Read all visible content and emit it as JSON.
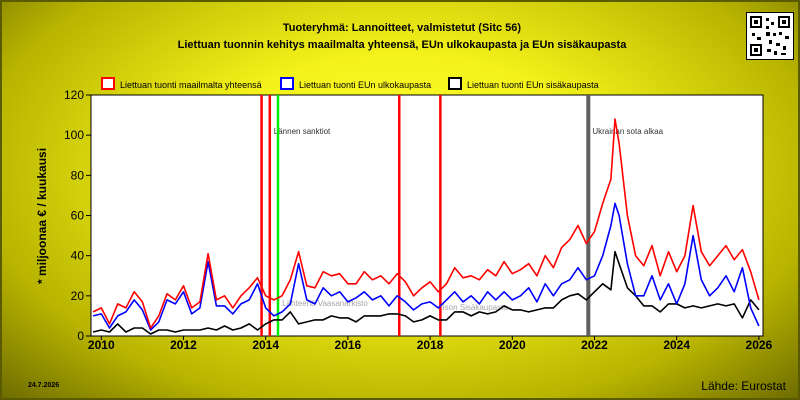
{
  "header": {
    "title": "Tuoteryhmä: Lannoitteet, valmistetut (Sitc 56)",
    "subtitle": "Liettuan tuonnin kehitys maailmalta yhteensä, EUn ulkokaupasta ja EUn sisäkaupasta"
  },
  "footer": {
    "date": "24.7.2026",
    "source": "Lähde: Eurostat"
  },
  "colors": {
    "world": "#ff0000",
    "extra_eu": "#0000ff",
    "intra_eu": "#000000",
    "plot_bg": "#ffffff",
    "sanctions": "#ff0000",
    "green_marker": "#00ee00",
    "war": "#606060"
  },
  "chart_data": {
    "type": "line",
    "ylabel": "* miljoonaa € / kuukausi",
    "xlabel": "",
    "xlim": [
      2009.75,
      2026.1
    ],
    "ylim": [
      0,
      120
    ],
    "yticks": [
      0,
      20,
      40,
      60,
      80,
      100,
      120
    ],
    "xticks": [
      2010,
      2012,
      2014,
      2016,
      2018,
      2020,
      2022,
      2024,
      2026
    ],
    "grid": false,
    "legend_position": "top",
    "annotations": [
      {
        "x": 2014.1,
        "text": "Lännen sanktiot",
        "color": "#ff0000"
      },
      {
        "x": 2014.3,
        "text": "",
        "color": "#00ee00"
      },
      {
        "x": 2017.25,
        "text": "",
        "color": "#ff0000"
      },
      {
        "x": 2018.25,
        "text": "",
        "color": "#ff0000"
      },
      {
        "x": 2021.85,
        "text": "Ukrainan sota alkaa",
        "color": "#606060"
      },
      {
        "x": 2013.9,
        "text": "",
        "color": "#ff0000"
      }
    ],
    "watermarks": [
      "Lähteenä Vaasanarkisto",
      "Ison Sisäkaupasta"
    ],
    "series": [
      {
        "name": "Liettuan tuonti maailmalta yhteensä",
        "points": [
          [
            2009.8,
            12
          ],
          [
            2010.0,
            14
          ],
          [
            2010.2,
            6
          ],
          [
            2010.4,
            16
          ],
          [
            2010.6,
            14
          ],
          [
            2010.8,
            22
          ],
          [
            2011.0,
            17
          ],
          [
            2011.2,
            4
          ],
          [
            2011.4,
            10
          ],
          [
            2011.6,
            21
          ],
          [
            2011.8,
            18
          ],
          [
            2012.0,
            25
          ],
          [
            2012.2,
            14
          ],
          [
            2012.4,
            17
          ],
          [
            2012.6,
            41
          ],
          [
            2012.8,
            18
          ],
          [
            2013.0,
            20
          ],
          [
            2013.2,
            14
          ],
          [
            2013.4,
            20
          ],
          [
            2013.6,
            24
          ],
          [
            2013.8,
            29
          ],
          [
            2014.0,
            20
          ],
          [
            2014.2,
            18
          ],
          [
            2014.4,
            20
          ],
          [
            2014.6,
            28
          ],
          [
            2014.8,
            42
          ],
          [
            2015.0,
            25
          ],
          [
            2015.2,
            24
          ],
          [
            2015.4,
            32
          ],
          [
            2015.6,
            30
          ],
          [
            2015.8,
            31
          ],
          [
            2016.0,
            26
          ],
          [
            2016.2,
            26
          ],
          [
            2016.4,
            32
          ],
          [
            2016.6,
            28
          ],
          [
            2016.8,
            30
          ],
          [
            2017.0,
            26
          ],
          [
            2017.2,
            31
          ],
          [
            2017.4,
            27
          ],
          [
            2017.6,
            20
          ],
          [
            2017.8,
            24
          ],
          [
            2018.0,
            27
          ],
          [
            2018.2,
            22
          ],
          [
            2018.4,
            26
          ],
          [
            2018.6,
            34
          ],
          [
            2018.8,
            29
          ],
          [
            2019.0,
            30
          ],
          [
            2019.2,
            28
          ],
          [
            2019.4,
            33
          ],
          [
            2019.6,
            30
          ],
          [
            2019.8,
            37
          ],
          [
            2020.0,
            31
          ],
          [
            2020.2,
            33
          ],
          [
            2020.4,
            36
          ],
          [
            2020.6,
            30
          ],
          [
            2020.8,
            40
          ],
          [
            2021.0,
            34
          ],
          [
            2021.2,
            44
          ],
          [
            2021.4,
            48
          ],
          [
            2021.6,
            55
          ],
          [
            2021.8,
            46
          ],
          [
            2022.0,
            52
          ],
          [
            2022.2,
            66
          ],
          [
            2022.4,
            78
          ],
          [
            2022.5,
            108
          ],
          [
            2022.6,
            96
          ],
          [
            2022.8,
            60
          ],
          [
            2023.0,
            40
          ],
          [
            2023.2,
            35
          ],
          [
            2023.4,
            45
          ],
          [
            2023.6,
            30
          ],
          [
            2023.8,
            42
          ],
          [
            2024.0,
            32
          ],
          [
            2024.2,
            40
          ],
          [
            2024.4,
            65
          ],
          [
            2024.6,
            42
          ],
          [
            2024.8,
            35
          ],
          [
            2025.0,
            40
          ],
          [
            2025.2,
            45
          ],
          [
            2025.4,
            38
          ],
          [
            2025.6,
            43
          ],
          [
            2025.8,
            32
          ],
          [
            2026.0,
            18
          ]
        ]
      },
      {
        "name": "Liettuan tuonti EUn ulkokaupasta",
        "points": [
          [
            2009.8,
            10
          ],
          [
            2010.0,
            11
          ],
          [
            2010.2,
            4
          ],
          [
            2010.4,
            10
          ],
          [
            2010.6,
            12
          ],
          [
            2010.8,
            18
          ],
          [
            2011.0,
            13
          ],
          [
            2011.2,
            3
          ],
          [
            2011.4,
            7
          ],
          [
            2011.6,
            18
          ],
          [
            2011.8,
            16
          ],
          [
            2012.0,
            22
          ],
          [
            2012.2,
            11
          ],
          [
            2012.4,
            14
          ],
          [
            2012.6,
            37
          ],
          [
            2012.8,
            15
          ],
          [
            2013.0,
            15
          ],
          [
            2013.2,
            11
          ],
          [
            2013.4,
            16
          ],
          [
            2013.6,
            18
          ],
          [
            2013.8,
            26
          ],
          [
            2014.0,
            14
          ],
          [
            2014.2,
            10
          ],
          [
            2014.4,
            12
          ],
          [
            2014.6,
            16
          ],
          [
            2014.8,
            36
          ],
          [
            2015.0,
            18
          ],
          [
            2015.2,
            16
          ],
          [
            2015.4,
            24
          ],
          [
            2015.6,
            20
          ],
          [
            2015.8,
            22
          ],
          [
            2016.0,
            17
          ],
          [
            2016.2,
            19
          ],
          [
            2016.4,
            22
          ],
          [
            2016.6,
            18
          ],
          [
            2016.8,
            20
          ],
          [
            2017.0,
            15
          ],
          [
            2017.2,
            20
          ],
          [
            2017.4,
            17
          ],
          [
            2017.6,
            13
          ],
          [
            2017.8,
            16
          ],
          [
            2018.0,
            17
          ],
          [
            2018.2,
            14
          ],
          [
            2018.4,
            18
          ],
          [
            2018.6,
            22
          ],
          [
            2018.8,
            17
          ],
          [
            2019.0,
            20
          ],
          [
            2019.2,
            16
          ],
          [
            2019.4,
            22
          ],
          [
            2019.6,
            18
          ],
          [
            2019.8,
            22
          ],
          [
            2020.0,
            18
          ],
          [
            2020.2,
            20
          ],
          [
            2020.4,
            24
          ],
          [
            2020.6,
            17
          ],
          [
            2020.8,
            26
          ],
          [
            2021.0,
            20
          ],
          [
            2021.2,
            26
          ],
          [
            2021.4,
            28
          ],
          [
            2021.6,
            34
          ],
          [
            2021.8,
            28
          ],
          [
            2022.0,
            30
          ],
          [
            2022.2,
            40
          ],
          [
            2022.4,
            55
          ],
          [
            2022.5,
            66
          ],
          [
            2022.6,
            60
          ],
          [
            2022.8,
            36
          ],
          [
            2023.0,
            20
          ],
          [
            2023.2,
            20
          ],
          [
            2023.4,
            30
          ],
          [
            2023.6,
            18
          ],
          [
            2023.8,
            26
          ],
          [
            2024.0,
            16
          ],
          [
            2024.2,
            26
          ],
          [
            2024.4,
            50
          ],
          [
            2024.6,
            28
          ],
          [
            2024.8,
            20
          ],
          [
            2025.0,
            24
          ],
          [
            2025.2,
            30
          ],
          [
            2025.4,
            22
          ],
          [
            2025.6,
            34
          ],
          [
            2025.8,
            14
          ],
          [
            2026.0,
            5
          ]
        ]
      },
      {
        "name": "Liettuan tuonti EUn sisäkaupasta",
        "points": [
          [
            2009.8,
            2
          ],
          [
            2010.0,
            3
          ],
          [
            2010.2,
            2
          ],
          [
            2010.4,
            6
          ],
          [
            2010.6,
            2
          ],
          [
            2010.8,
            4
          ],
          [
            2011.0,
            4
          ],
          [
            2011.2,
            1
          ],
          [
            2011.4,
            3
          ],
          [
            2011.6,
            3
          ],
          [
            2011.8,
            2
          ],
          [
            2012.0,
            3
          ],
          [
            2012.2,
            3
          ],
          [
            2012.4,
            3
          ],
          [
            2012.6,
            4
          ],
          [
            2012.8,
            3
          ],
          [
            2013.0,
            5
          ],
          [
            2013.2,
            3
          ],
          [
            2013.4,
            4
          ],
          [
            2013.6,
            6
          ],
          [
            2013.8,
            3
          ],
          [
            2014.0,
            6
          ],
          [
            2014.2,
            8
          ],
          [
            2014.4,
            8
          ],
          [
            2014.6,
            12
          ],
          [
            2014.8,
            6
          ],
          [
            2015.0,
            7
          ],
          [
            2015.2,
            8
          ],
          [
            2015.4,
            8
          ],
          [
            2015.6,
            10
          ],
          [
            2015.8,
            9
          ],
          [
            2016.0,
            9
          ],
          [
            2016.2,
            7
          ],
          [
            2016.4,
            10
          ],
          [
            2016.6,
            10
          ],
          [
            2016.8,
            10
          ],
          [
            2017.0,
            11
          ],
          [
            2017.2,
            11
          ],
          [
            2017.4,
            10
          ],
          [
            2017.6,
            7
          ],
          [
            2017.8,
            8
          ],
          [
            2018.0,
            10
          ],
          [
            2018.2,
            8
          ],
          [
            2018.4,
            8
          ],
          [
            2018.6,
            12
          ],
          [
            2018.8,
            12
          ],
          [
            2019.0,
            10
          ],
          [
            2019.2,
            12
          ],
          [
            2019.4,
            11
          ],
          [
            2019.6,
            12
          ],
          [
            2019.8,
            15
          ],
          [
            2020.0,
            13
          ],
          [
            2020.2,
            13
          ],
          [
            2020.4,
            12
          ],
          [
            2020.6,
            13
          ],
          [
            2020.8,
            14
          ],
          [
            2021.0,
            14
          ],
          [
            2021.2,
            18
          ],
          [
            2021.4,
            20
          ],
          [
            2021.6,
            21
          ],
          [
            2021.8,
            18
          ],
          [
            2022.0,
            22
          ],
          [
            2022.2,
            26
          ],
          [
            2022.4,
            23
          ],
          [
            2022.5,
            42
          ],
          [
            2022.6,
            36
          ],
          [
            2022.8,
            24
          ],
          [
            2023.0,
            20
          ],
          [
            2023.2,
            15
          ],
          [
            2023.4,
            15
          ],
          [
            2023.6,
            12
          ],
          [
            2023.8,
            16
          ],
          [
            2024.0,
            16
          ],
          [
            2024.2,
            14
          ],
          [
            2024.4,
            15
          ],
          [
            2024.6,
            14
          ],
          [
            2024.8,
            15
          ],
          [
            2025.0,
            16
          ],
          [
            2025.2,
            15
          ],
          [
            2025.4,
            16
          ],
          [
            2025.6,
            9
          ],
          [
            2025.8,
            18
          ],
          [
            2026.0,
            13
          ]
        ]
      }
    ]
  }
}
